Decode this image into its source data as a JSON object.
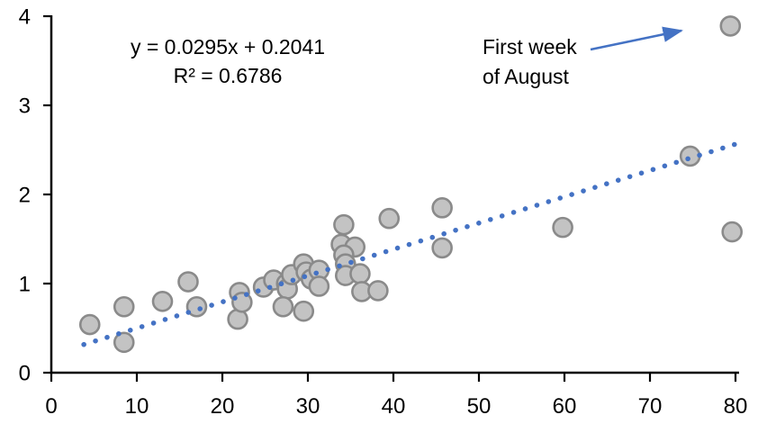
{
  "chart_data": {
    "type": "scatter",
    "title": "",
    "xlabel": "",
    "ylabel": "",
    "x_axis": {
      "min": 0,
      "max": 80,
      "ticks": [
        0,
        10,
        20,
        30,
        40,
        50,
        60,
        70,
        80
      ]
    },
    "y_axis": {
      "min": 0,
      "max": 4,
      "ticks": [
        0,
        1,
        2,
        3,
        4
      ]
    },
    "grid": false,
    "legend": false,
    "points": [
      [
        4.5,
        0.54
      ],
      [
        8.5,
        0.74
      ],
      [
        8.5,
        0.34
      ],
      [
        13,
        0.8
      ],
      [
        16,
        1.02
      ],
      [
        17,
        0.74
      ],
      [
        21.8,
        0.6
      ],
      [
        22,
        0.9
      ],
      [
        22.3,
        0.79
      ],
      [
        24.8,
        0.96
      ],
      [
        26,
        1.04
      ],
      [
        27.5,
        1.0
      ],
      [
        27.6,
        0.94
      ],
      [
        27.1,
        0.74
      ],
      [
        28.1,
        1.1
      ],
      [
        29.5,
        1.22
      ],
      [
        29.8,
        1.13
      ],
      [
        30.4,
        1.05
      ],
      [
        29.5,
        0.69
      ],
      [
        31.3,
        1.15
      ],
      [
        31.3,
        0.97
      ],
      [
        34.2,
        1.66
      ],
      [
        33.9,
        1.44
      ],
      [
        35.5,
        1.41
      ],
      [
        34.2,
        1.32
      ],
      [
        34.4,
        1.22
      ],
      [
        34.4,
        1.09
      ],
      [
        36.1,
        1.11
      ],
      [
        36.3,
        0.91
      ],
      [
        38.2,
        0.92
      ],
      [
        39.5,
        1.73
      ],
      [
        45.7,
        1.85
      ],
      [
        45.7,
        1.4
      ],
      [
        59.8,
        1.63
      ],
      [
        74.7,
        2.43
      ],
      [
        79.4,
        3.89
      ],
      [
        79.6,
        1.58
      ]
    ],
    "trendline": {
      "slope": 0.0295,
      "intercept": 0.2041,
      "x_start": 3.8,
      "x_end": 80.3,
      "equation_line1": "y = 0.0295x + 0.2041",
      "equation_line2": "R² = 0.6786",
      "style": "dotted"
    },
    "annotation": {
      "line1": "First week",
      "line2": "of August",
      "points_to": [
        79.4,
        3.89
      ]
    },
    "colors": {
      "point_fill": "#c3c3c3",
      "point_stroke": "#8a8a8a",
      "trendline": "#4472c4",
      "arrow": "#4472c4",
      "axis": "#000000",
      "text": "#000000"
    }
  }
}
